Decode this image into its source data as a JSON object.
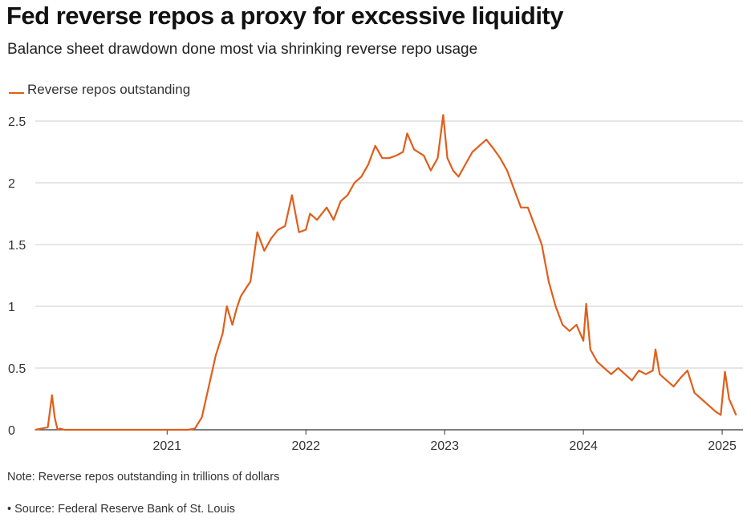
{
  "header": {
    "title": "Fed reverse repos a proxy for excessive liquidity",
    "subtitle": "Balance sheet drawdown done most via shrinking reverse repo usage"
  },
  "footer": {
    "note": "Note: Reverse repos outstanding in trillions of dollars",
    "source": "• Source: Federal Reserve Bank of St. Louis"
  },
  "chart_data": {
    "type": "line",
    "title": "Fed reverse repos a proxy for excessive liquidity",
    "subtitle": "Balance sheet drawdown done most via shrinking reverse repo usage",
    "xlabel": "",
    "ylabel": "",
    "xlim": [
      2020.05,
      2025.15
    ],
    "ylim": [
      0,
      2.5
    ],
    "x_ticks": [
      2021,
      2022,
      2023,
      2024,
      2025
    ],
    "x_tick_labels": [
      "2021",
      "2022",
      "2023",
      "2024",
      "2025"
    ],
    "y_ticks": [
      0,
      0.5,
      1,
      1.5,
      2,
      2.5
    ],
    "y_tick_labels": [
      "0",
      "0.5",
      "1",
      "1.5",
      "2",
      "2.5"
    ],
    "grid": "horizontal",
    "legend_position": "top-left",
    "series_color": "#e05e1a",
    "series": [
      {
        "name": "Reverse repos outstanding",
        "x": [
          2020.05,
          2020.14,
          2020.17,
          2020.19,
          2020.21,
          2020.23,
          2020.26,
          2020.3,
          2020.5,
          2020.8,
          2021.0,
          2021.15,
          2021.2,
          2021.25,
          2021.3,
          2021.35,
          2021.4,
          2021.43,
          2021.47,
          2021.5,
          2021.53,
          2021.57,
          2021.6,
          2021.65,
          2021.7,
          2021.75,
          2021.8,
          2021.85,
          2021.9,
          2021.95,
          2022.0,
          2022.03,
          2022.08,
          2022.15,
          2022.2,
          2022.25,
          2022.3,
          2022.35,
          2022.4,
          2022.45,
          2022.5,
          2022.55,
          2022.6,
          2022.65,
          2022.7,
          2022.73,
          2022.78,
          2022.85,
          2022.9,
          2022.95,
          2022.99,
          2023.02,
          2023.06,
          2023.1,
          2023.15,
          2023.2,
          2023.25,
          2023.3,
          2023.35,
          2023.4,
          2023.45,
          2023.5,
          2023.55,
          2023.6,
          2023.65,
          2023.7,
          2023.75,
          2023.8,
          2023.85,
          2023.9,
          2023.95,
          2024.0,
          2024.02,
          2024.05,
          2024.1,
          2024.15,
          2024.2,
          2024.25,
          2024.3,
          2024.35,
          2024.4,
          2024.45,
          2024.5,
          2024.52,
          2024.55,
          2024.6,
          2024.65,
          2024.7,
          2024.75,
          2024.8,
          2024.85,
          2024.9,
          2024.95,
          2024.99,
          2025.02,
          2025.05,
          2025.1
        ],
        "values": [
          0.0,
          0.02,
          0.28,
          0.1,
          0.0,
          0.01,
          0.0,
          0.0,
          0.0,
          0.0,
          0.0,
          0.0,
          0.01,
          0.1,
          0.35,
          0.6,
          0.78,
          1.0,
          0.85,
          0.98,
          1.08,
          1.15,
          1.2,
          1.6,
          1.45,
          1.55,
          1.62,
          1.65,
          1.9,
          1.6,
          1.62,
          1.75,
          1.7,
          1.8,
          1.7,
          1.85,
          1.9,
          2.0,
          2.05,
          2.15,
          2.3,
          2.2,
          2.2,
          2.22,
          2.25,
          2.4,
          2.27,
          2.22,
          2.1,
          2.2,
          2.55,
          2.2,
          2.1,
          2.05,
          2.15,
          2.25,
          2.3,
          2.35,
          2.28,
          2.2,
          2.1,
          1.95,
          1.8,
          1.8,
          1.65,
          1.5,
          1.2,
          1.0,
          0.85,
          0.8,
          0.85,
          0.72,
          1.02,
          0.65,
          0.55,
          0.5,
          0.45,
          0.5,
          0.45,
          0.4,
          0.48,
          0.45,
          0.48,
          0.65,
          0.45,
          0.4,
          0.35,
          0.42,
          0.48,
          0.3,
          0.25,
          0.2,
          0.15,
          0.12,
          0.47,
          0.25,
          0.12
        ]
      }
    ]
  }
}
